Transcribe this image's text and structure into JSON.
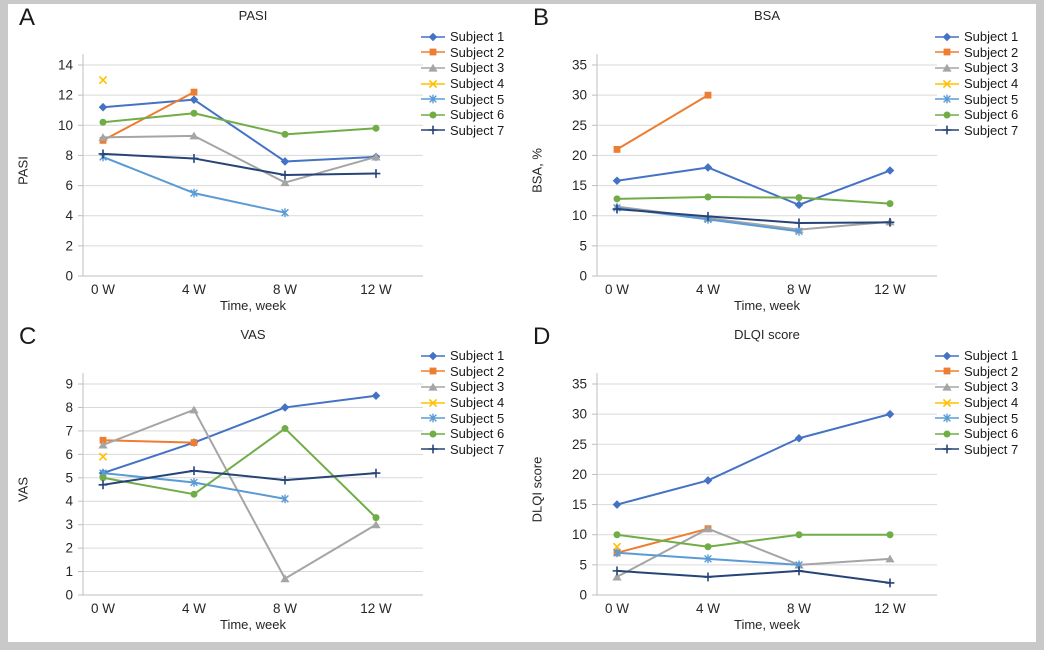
{
  "figure": {
    "frame_color": "#c9c9c9",
    "canvas_color": "#ffffff",
    "grid_color": "#d9d9d9",
    "axis_color": "#bfbfbf",
    "text_color": "#262626"
  },
  "subjects": [
    {
      "label": "Subject 1",
      "color": "#4472c4",
      "marker": "diamond"
    },
    {
      "label": "Subject 2",
      "color": "#ed7d31",
      "marker": "square"
    },
    {
      "label": "Subject 3",
      "color": "#a5a5a5",
      "marker": "triangle"
    },
    {
      "label": "Subject 4",
      "color": "#ffc000",
      "marker": "x"
    },
    {
      "label": "Subject 5",
      "color": "#5b9bd5",
      "marker": "asterisk"
    },
    {
      "label": "Subject 6",
      "color": "#70ad47",
      "marker": "circle"
    },
    {
      "label": "Subject 7",
      "color": "#264478",
      "marker": "plus"
    }
  ],
  "chart_data": [
    {
      "panel_label": "A",
      "type": "line",
      "title": "PASI",
      "xlabel": "Time, week",
      "ylabel": "PASI",
      "categories": [
        "0 W",
        "4 W",
        "8 W",
        "12 W"
      ],
      "ylim": [
        0,
        14
      ],
      "ystep": 2,
      "grid": "horizontal",
      "legend_position": "right",
      "series": [
        {
          "name": "Subject 1",
          "values": [
            11.2,
            11.7,
            7.6,
            7.9
          ]
        },
        {
          "name": "Subject 2",
          "values": [
            9.0,
            12.2,
            null,
            null
          ]
        },
        {
          "name": "Subject 3",
          "values": [
            9.2,
            9.3,
            6.2,
            7.9
          ]
        },
        {
          "name": "Subject 4",
          "values": [
            13.0,
            null,
            null,
            null
          ]
        },
        {
          "name": "Subject 5",
          "values": [
            7.9,
            5.5,
            4.2,
            null
          ]
        },
        {
          "name": "Subject 6",
          "values": [
            10.2,
            10.8,
            9.4,
            9.8
          ]
        },
        {
          "name": "Subject 7",
          "values": [
            8.1,
            7.8,
            6.7,
            6.8
          ]
        }
      ]
    },
    {
      "panel_label": "B",
      "type": "line",
      "title": "BSA",
      "xlabel": "Time, week",
      "ylabel": "BSA, %",
      "categories": [
        "0 W",
        "4 W",
        "8 W",
        "12 W"
      ],
      "ylim": [
        0,
        35
      ],
      "ystep": 5,
      "grid": "horizontal",
      "legend_position": "right",
      "series": [
        {
          "name": "Subject 1",
          "values": [
            15.8,
            18.0,
            11.8,
            17.5
          ]
        },
        {
          "name": "Subject 2",
          "values": [
            21.0,
            30.0,
            null,
            null
          ]
        },
        {
          "name": "Subject 3",
          "values": [
            11.5,
            9.6,
            7.7,
            9.0
          ]
        },
        {
          "name": "Subject 4",
          "values": [
            null,
            null,
            null,
            null
          ]
        },
        {
          "name": "Subject 5",
          "values": [
            11.3,
            9.4,
            7.4,
            null
          ]
        },
        {
          "name": "Subject 6",
          "values": [
            12.8,
            13.1,
            13.0,
            12.0
          ]
        },
        {
          "name": "Subject 7",
          "values": [
            11.1,
            9.9,
            8.8,
            8.9
          ]
        }
      ]
    },
    {
      "panel_label": "C",
      "type": "line",
      "title": "VAS",
      "xlabel": "Time, week",
      "ylabel": "VAS",
      "categories": [
        "0 W",
        "4 W",
        "8 W",
        "12 W"
      ],
      "ylim": [
        0,
        9
      ],
      "ystep": 1,
      "grid": "horizontal",
      "legend_position": "right",
      "series": [
        {
          "name": "Subject 1",
          "values": [
            5.2,
            6.5,
            8.0,
            8.5
          ]
        },
        {
          "name": "Subject 2",
          "values": [
            6.6,
            6.5,
            null,
            null
          ]
        },
        {
          "name": "Subject 3",
          "values": [
            6.4,
            7.9,
            0.7,
            3.0
          ]
        },
        {
          "name": "Subject 4",
          "values": [
            5.9,
            null,
            null,
            null
          ]
        },
        {
          "name": "Subject 5",
          "values": [
            5.2,
            4.8,
            4.1,
            null
          ]
        },
        {
          "name": "Subject 6",
          "values": [
            5.0,
            4.3,
            7.1,
            3.3
          ]
        },
        {
          "name": "Subject 7",
          "values": [
            4.7,
            5.3,
            4.9,
            5.2
          ]
        }
      ]
    },
    {
      "panel_label": "D",
      "type": "line",
      "title": "DLQI score",
      "xlabel": "Time, week",
      "ylabel": "DLQI score",
      "categories": [
        "0 W",
        "4 W",
        "8 W",
        "12 W"
      ],
      "ylim": [
        0,
        35
      ],
      "ystep": 5,
      "grid": "horizontal",
      "legend_position": "right",
      "series": [
        {
          "name": "Subject 1",
          "values": [
            15,
            19,
            26,
            30
          ]
        },
        {
          "name": "Subject 2",
          "values": [
            7,
            11,
            null,
            null
          ]
        },
        {
          "name": "Subject 3",
          "values": [
            3,
            11,
            5,
            6
          ]
        },
        {
          "name": "Subject 4",
          "values": [
            8,
            null,
            null,
            null
          ]
        },
        {
          "name": "Subject 5",
          "values": [
            7,
            6,
            5,
            null
          ]
        },
        {
          "name": "Subject 6",
          "values": [
            10,
            8,
            10,
            10
          ]
        },
        {
          "name": "Subject 7",
          "values": [
            4,
            3,
            4,
            2
          ]
        }
      ]
    }
  ]
}
